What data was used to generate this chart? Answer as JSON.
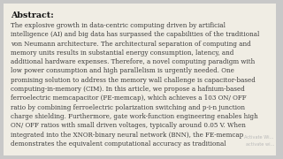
{
  "background_color": "#c8c8c8",
  "panel_color": "#f0ede4",
  "title": "Abstract:",
  "title_fontsize": 6.8,
  "body_fontsize": 5.1,
  "body_color": "#3a3a3a",
  "title_color": "#111111",
  "watermark_color": "#b8b8b8",
  "watermark_fontsize": 3.6,
  "watermark_line1": "Activate Wi...",
  "watermark_line2": "activate wi...",
  "body_lines": [
    "The explosive growth in data-centric computing driven by artificial",
    "intelligence (AI) and big data has surpassed the capabilities of the traditional",
    "von Neumann architecture. The architectural separation of computing and",
    "memory units results in substantial energy consumption, latency, and",
    "additional hardware expenses. Therefore, a novel computing paradigm with",
    "low power consumption and high parallelism is urgently needed. One",
    "promising solution to address the memory wall challenge is capacitor-based",
    "computing-in-memory (CIM). In this article, we propose a hafnium-based",
    "ferroelectric memcapacitor (FE-memcap), which achieves a 103 ON/ OFF",
    "ratio by combining ferroelectric polarization switching and p-i-n junction",
    "charge shielding. Furthermore, gate work-function engineering enables high",
    "ON/ OFF ratios with small driven voltages, typically around 0.05 V. When",
    "integrated into the XNOR-binary neural network (BNN), the FE-memcap",
    "demonstrates the equivalent computational accuracy as traditional"
  ]
}
